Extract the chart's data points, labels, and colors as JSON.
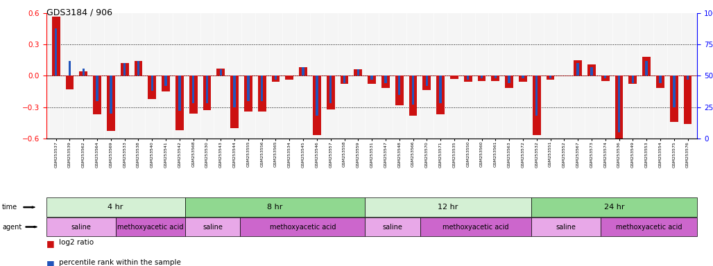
{
  "title": "GDS3184 / 906",
  "samples": [
    "GSM253537",
    "GSM253539",
    "GSM253562",
    "GSM253564",
    "GSM253569",
    "GSM253533",
    "GSM253538",
    "GSM253540",
    "GSM253541",
    "GSM253542",
    "GSM253568",
    "GSM253530",
    "GSM253543",
    "GSM253544",
    "GSM253555",
    "GSM253556",
    "GSM253565",
    "GSM253534",
    "GSM253545",
    "GSM253546",
    "GSM253557",
    "GSM253558",
    "GSM253559",
    "GSM253531",
    "GSM253547",
    "GSM253548",
    "GSM253566",
    "GSM253570",
    "GSM253571",
    "GSM253535",
    "GSM253550",
    "GSM253560",
    "GSM253561",
    "GSM253563",
    "GSM253572",
    "GSM253532",
    "GSM253551",
    "GSM253552",
    "GSM253567",
    "GSM253573",
    "GSM253574",
    "GSM253536",
    "GSM253549",
    "GSM253553",
    "GSM253554",
    "GSM253575",
    "GSM253576"
  ],
  "log2_ratio": [
    0.57,
    -0.13,
    0.04,
    -0.37,
    -0.53,
    0.12,
    0.14,
    -0.22,
    -0.15,
    -0.52,
    -0.36,
    -0.33,
    0.07,
    -0.5,
    -0.34,
    -0.34,
    -0.06,
    -0.04,
    0.08,
    -0.57,
    -0.32,
    -0.08,
    0.06,
    -0.08,
    -0.12,
    -0.28,
    -0.38,
    -0.14,
    -0.37,
    -0.03,
    -0.06,
    -0.05,
    -0.05,
    -0.12,
    -0.06,
    -0.57,
    -0.04,
    0.0,
    0.15,
    0.11,
    -0.05,
    -0.62,
    -0.08,
    0.18,
    -0.12,
    -0.44,
    -0.46
  ],
  "percentile": [
    88,
    62,
    56,
    30,
    20,
    60,
    62,
    38,
    42,
    22,
    28,
    28,
    55,
    25,
    30,
    30,
    47,
    50,
    57,
    18,
    28,
    44,
    55,
    47,
    44,
    35,
    27,
    42,
    28,
    50,
    47,
    48,
    48,
    44,
    48,
    18,
    48,
    50,
    60,
    57,
    48,
    5,
    44,
    62,
    44,
    25,
    47
  ],
  "time_groups": [
    {
      "label": "4 hr",
      "start": 0,
      "end": 10,
      "color": "#d4f0d4"
    },
    {
      "label": "8 hr",
      "start": 10,
      "end": 23,
      "color": "#90d890"
    },
    {
      "label": "12 hr",
      "start": 23,
      "end": 35,
      "color": "#d4f0d4"
    },
    {
      "label": "24 hr",
      "start": 35,
      "end": 47,
      "color": "#90d890"
    }
  ],
  "agent_groups": [
    {
      "label": "saline",
      "start": 0,
      "end": 5,
      "color": "#e8a8e8"
    },
    {
      "label": "methoxyacetic acid",
      "start": 5,
      "end": 10,
      "color": "#cc66cc"
    },
    {
      "label": "saline",
      "start": 10,
      "end": 14,
      "color": "#e8a8e8"
    },
    {
      "label": "methoxyacetic acid",
      "start": 14,
      "end": 23,
      "color": "#cc66cc"
    },
    {
      "label": "saline",
      "start": 23,
      "end": 27,
      "color": "#e8a8e8"
    },
    {
      "label": "methoxyacetic acid",
      "start": 27,
      "end": 35,
      "color": "#cc66cc"
    },
    {
      "label": "saline",
      "start": 35,
      "end": 40,
      "color": "#e8a8e8"
    },
    {
      "label": "methoxyacetic acid",
      "start": 40,
      "end": 47,
      "color": "#cc66cc"
    }
  ],
  "ylim_left": [
    -0.6,
    0.6
  ],
  "ylim_right": [
    0,
    100
  ],
  "yticks_left": [
    -0.6,
    -0.3,
    0.0,
    0.3,
    0.6
  ],
  "yticks_right": [
    0,
    25,
    50,
    75,
    100
  ],
  "bar_color_red": "#cc1111",
  "bar_color_blue": "#2255bb",
  "bg_color": "#ffffff",
  "legend_red": "log2 ratio",
  "legend_blue": "percentile rank within the sample"
}
